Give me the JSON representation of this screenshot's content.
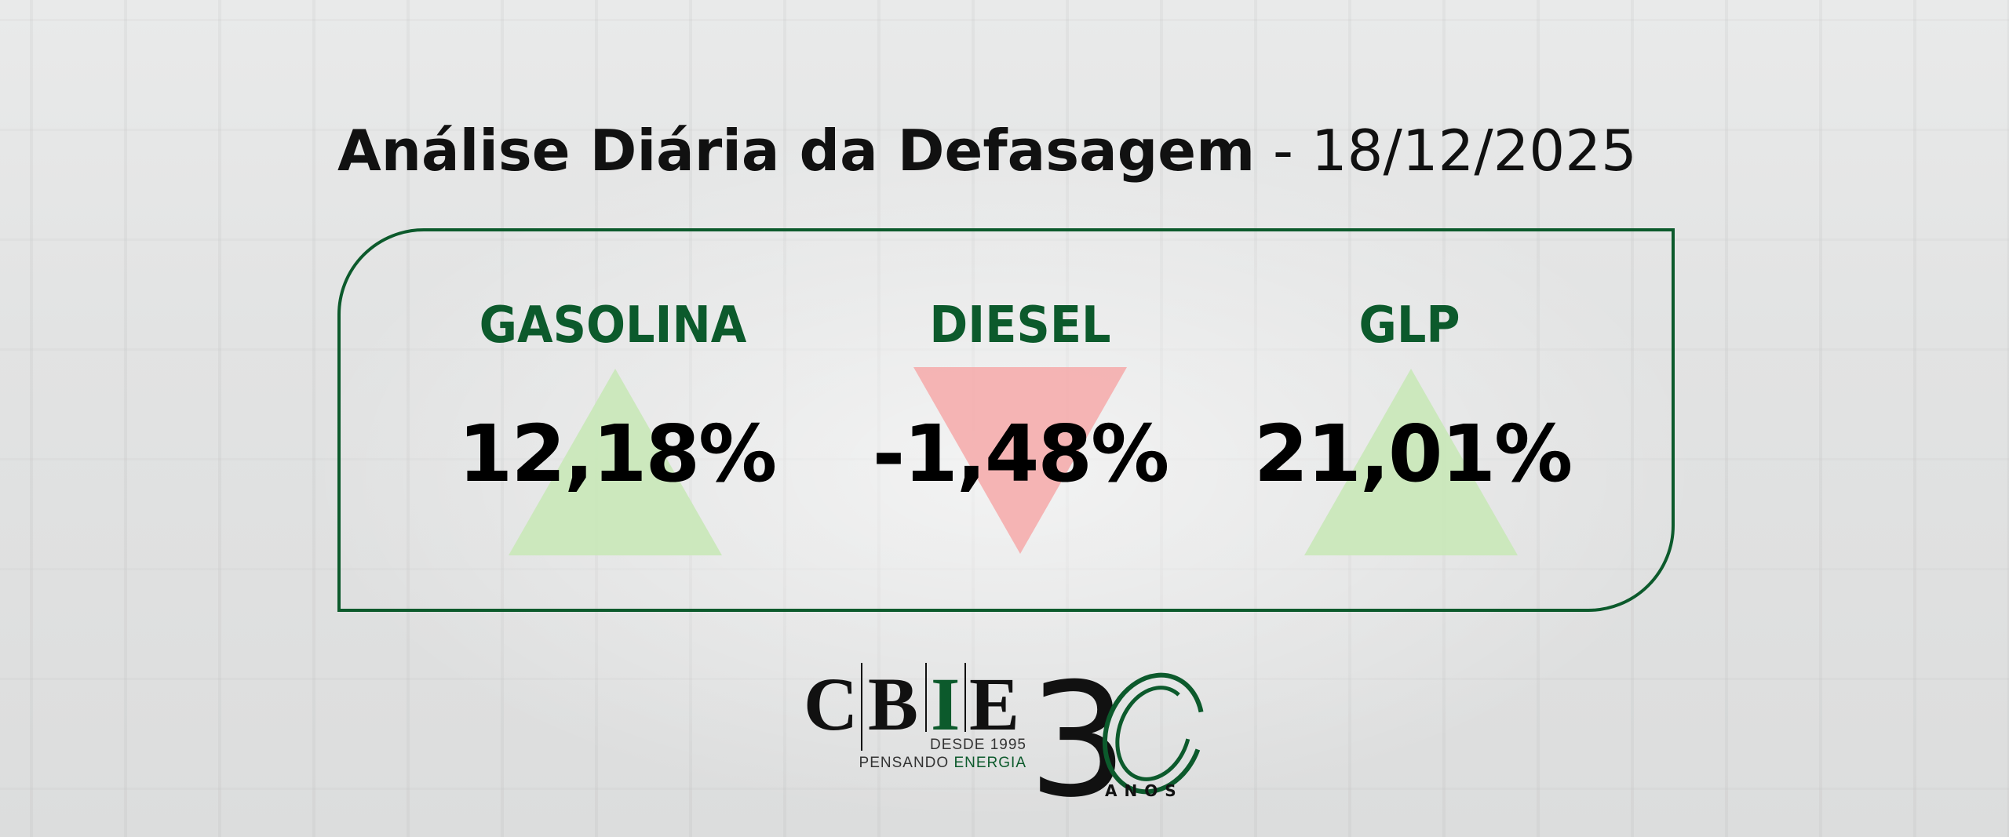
{
  "header": {
    "title": "Análise Diária da Defasagem",
    "separator": " - ",
    "date": "18/12/2025"
  },
  "fuels": [
    {
      "name": "GASOLINA",
      "value": "12,18%",
      "direction": "up",
      "arrow_color": "#c9e8b8"
    },
    {
      "name": "DIESEL",
      "value": "-1,48%",
      "direction": "down",
      "arrow_color": "#f4b0b0"
    },
    {
      "name": "GLP",
      "value": "21,01%",
      "direction": "up",
      "arrow_color": "#c9e8b8"
    }
  ],
  "colors": {
    "brand_green": "#0c5a2c",
    "text": "#000000"
  },
  "logo": {
    "letters": [
      "C",
      "B",
      "I",
      "E"
    ],
    "tagline1": "DESDE 1995",
    "tagline2a": "PENSANDO ",
    "tagline2b": "ENERGIA",
    "anniversary": "3",
    "anos": "ANOS"
  }
}
